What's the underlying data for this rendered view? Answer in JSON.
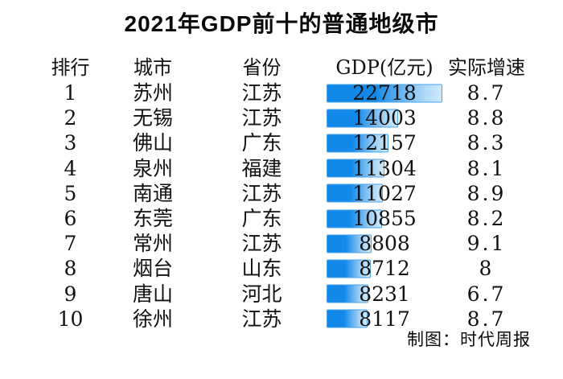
{
  "title": "2021年GDP前十的普通地级市",
  "credit": "制图：时代周报",
  "colors": {
    "background": "#ffffff",
    "text": "#111111",
    "bar_fill_start": "#1289e9",
    "bar_fill_end": "#cfe9fb",
    "bar_border": "#4aa3ec"
  },
  "chart_data": {
    "type": "table",
    "title": "2021年GDP前十的普通地级市",
    "columns": [
      "排行",
      "城市",
      "省份",
      "GDP(亿元)",
      "实际增速"
    ],
    "bar_column": "GDP(亿元)",
    "bar_style": "gradient-data-bar",
    "bar_axis_min": 0,
    "bar_axis_max": 22718,
    "rows": [
      {
        "rank": "1",
        "city": "苏州",
        "province": "江苏",
        "gdp": 22718,
        "growth": "8.7"
      },
      {
        "rank": "2",
        "city": "无锡",
        "province": "江苏",
        "gdp": 14003,
        "growth": "8.8"
      },
      {
        "rank": "3",
        "city": "佛山",
        "province": "广东",
        "gdp": 12157,
        "growth": "8.3"
      },
      {
        "rank": "4",
        "city": "泉州",
        "province": "福建",
        "gdp": 11304,
        "growth": "8.1"
      },
      {
        "rank": "5",
        "city": "南通",
        "province": "江苏",
        "gdp": 11027,
        "growth": "8.9"
      },
      {
        "rank": "6",
        "city": "东莞",
        "province": "广东",
        "gdp": 10855,
        "growth": "8.2"
      },
      {
        "rank": "7",
        "city": "常州",
        "province": "江苏",
        "gdp": 8808,
        "growth": "9.1"
      },
      {
        "rank": "8",
        "city": "烟台",
        "province": "山东",
        "gdp": 8712,
        "growth": "8"
      },
      {
        "rank": "9",
        "city": "唐山",
        "province": "河北",
        "gdp": 8231,
        "growth": "6.7"
      },
      {
        "rank": "10",
        "city": "徐州",
        "province": "江苏",
        "gdp": 8117,
        "growth": "8.7"
      }
    ],
    "credit": "制图：时代周报"
  }
}
